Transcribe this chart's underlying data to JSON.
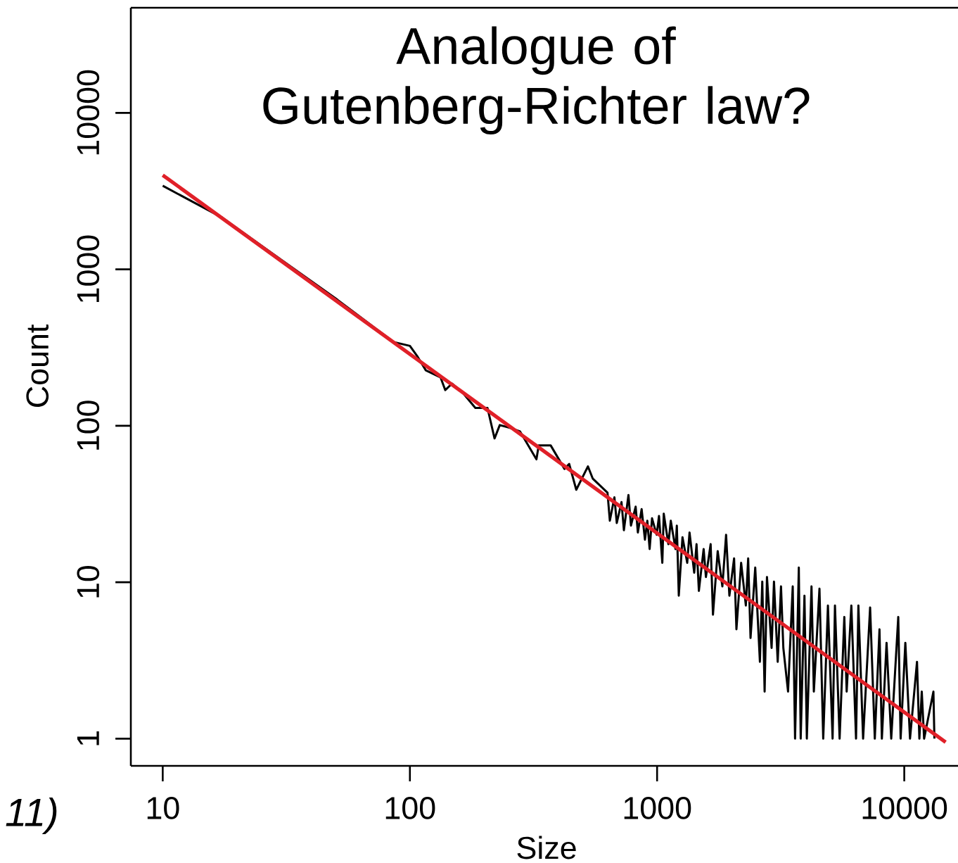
{
  "chart_data": {
    "type": "line",
    "title": "Analogue of Gutenberg-Richter law?",
    "xlabel": "Size",
    "ylabel": "Count",
    "annotations": [
      "11)"
    ],
    "log": "xy",
    "xlim": [
      7.43,
      16500
    ],
    "ylim": [
      0.67,
      47000
    ],
    "xticks": [
      10,
      100,
      1000,
      10000
    ],
    "yticks": [
      1,
      10,
      100,
      1000,
      10000
    ],
    "series": [
      {
        "color": "#000000",
        "x": [
          10,
          17.4,
          30.2,
          50.9,
          85.9,
          100,
          107,
          116,
          133,
          139,
          148,
          165,
          184,
          206,
          220,
          231,
          254,
          279,
          325,
          332,
          371,
          422,
          441,
          471,
          525,
          549,
          630,
          644,
          672,
          687,
          718,
          734,
          766,
          784,
          819,
          836,
          866,
          893,
          913,
          933,
          954,
          996,
          1018,
          1050,
          1064,
          1111,
          1136,
          1187,
          1202,
          1224,
          1267,
          1324,
          1353,
          1413,
          1444,
          1476,
          1543,
          1576,
          1647,
          1683,
          1759,
          1837,
          1902,
          1961,
          2049,
          2094,
          2188,
          2286,
          2336,
          2388,
          2495,
          2606,
          2664,
          2723,
          2783,
          2906,
          2971,
          3076,
          3172,
          3242,
          3387,
          3538,
          3616,
          3745,
          3811,
          3947,
          4035,
          4214,
          4307,
          4539,
          4700,
          4911,
          5129,
          5243,
          5476,
          5721,
          5848,
          6108,
          6381,
          6522,
          6815,
          7276,
          7600,
          7940,
          8117,
          8479,
          8856,
          9456,
          9667,
          10100,
          10550,
          11260,
          11510,
          11770,
          12030,
          13120,
          13240
        ],
        "values": [
          3420,
          2140,
          1150,
          639,
          343,
          324,
          279,
          226,
          204,
          169,
          186,
          160,
          130,
          130,
          83,
          101,
          97,
          92,
          61,
          75,
          75,
          53,
          57,
          39,
          55,
          46,
          37.4,
          24.7,
          34.9,
          23.9,
          32.5,
          21.5,
          36.1,
          23,
          30.4,
          20.8,
          29.3,
          18.7,
          24.7,
          16.3,
          25.6,
          20.1,
          26.5,
          13.3,
          27.4,
          17.5,
          24.7,
          16.3,
          23,
          8.2,
          19.4,
          13.3,
          20.8,
          11.5,
          17.5,
          8.8,
          16.3,
          10.8,
          17.5,
          6.2,
          15.8,
          9.4,
          20.1,
          8.2,
          14.2,
          5,
          13.3,
          7.1,
          14.2,
          4.4,
          12.4,
          3.1,
          10.1,
          2,
          10.8,
          3.8,
          10.1,
          3.1,
          9.4,
          3.8,
          2,
          9.4,
          1,
          12.4,
          1,
          8.2,
          1,
          9.4,
          2,
          9.1,
          1,
          7.1,
          1,
          7.1,
          1,
          6,
          2,
          7.1,
          1,
          7.1,
          1,
          6.9,
          1,
          5,
          1,
          4.1,
          1,
          6,
          1,
          4.1,
          1,
          3.1,
          1,
          2,
          1,
          2,
          1
        ]
      },
      {
        "type": "line",
        "color": "#e02028",
        "x": [
          10,
          14700
        ],
        "values": [
          4000,
          0.95
        ]
      }
    ]
  }
}
